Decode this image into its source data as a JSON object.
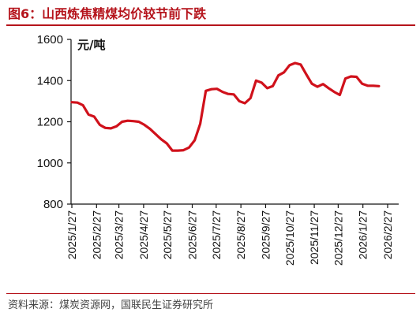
{
  "header": {
    "title": "图6：山西炼焦精煤均价较节前下跌"
  },
  "footer": {
    "source": "资料来源：煤炭资源网，国联民生证券研究所"
  },
  "chart_data": {
    "type": "line",
    "title": "图6：山西炼焦精煤均价较节前下跌",
    "ylabel": "元/吨",
    "xlabel": "",
    "ylim": [
      800,
      1600
    ],
    "yticks": [
      800,
      1000,
      1200,
      1400,
      1600
    ],
    "grid": false,
    "line_color": "#d0111b",
    "x_tick_labels": [
      "2025/1/27",
      "2025/2/27",
      "2025/3/27",
      "2025/4/27",
      "2025/5/27",
      "2025/6/27",
      "2025/7/27",
      "2025/8/27",
      "2025/9/27",
      "2025/10/27",
      "2025/11/27",
      "2025/12/27",
      "2026/1/27",
      "2026/2/27"
    ],
    "series": [
      {
        "values": [
          {
            "x": "2025/1/27",
            "y": 1295
          },
          {
            "x": "2025/2/3",
            "y": 1293
          },
          {
            "x": "2025/2/10",
            "y": 1280
          },
          {
            "x": "2025/2/17",
            "y": 1235
          },
          {
            "x": "2025/2/24",
            "y": 1225
          },
          {
            "x": "2025/3/3",
            "y": 1185
          },
          {
            "x": "2025/3/10",
            "y": 1170
          },
          {
            "x": "2025/3/17",
            "y": 1168
          },
          {
            "x": "2025/3/24",
            "y": 1178
          },
          {
            "x": "2025/3/31",
            "y": 1200
          },
          {
            "x": "2025/4/7",
            "y": 1205
          },
          {
            "x": "2025/4/14",
            "y": 1203
          },
          {
            "x": "2025/4/21",
            "y": 1200
          },
          {
            "x": "2025/4/28",
            "y": 1185
          },
          {
            "x": "2025/5/5",
            "y": 1165
          },
          {
            "x": "2025/5/12",
            "y": 1140
          },
          {
            "x": "2025/5/19",
            "y": 1115
          },
          {
            "x": "2025/5/26",
            "y": 1095
          },
          {
            "x": "2025/6/2",
            "y": 1060
          },
          {
            "x": "2025/6/9",
            "y": 1060
          },
          {
            "x": "2025/6/16",
            "y": 1062
          },
          {
            "x": "2025/6/23",
            "y": 1075
          },
          {
            "x": "2025/6/30",
            "y": 1110
          },
          {
            "x": "2025/7/7",
            "y": 1190
          },
          {
            "x": "2025/7/14",
            "y": 1350
          },
          {
            "x": "2025/7/21",
            "y": 1358
          },
          {
            "x": "2025/7/28",
            "y": 1360
          },
          {
            "x": "2025/8/4",
            "y": 1345
          },
          {
            "x": "2025/8/11",
            "y": 1335
          },
          {
            "x": "2025/8/18",
            "y": 1333
          },
          {
            "x": "2025/8/25",
            "y": 1300
          },
          {
            "x": "2025/9/1",
            "y": 1290
          },
          {
            "x": "2025/9/8",
            "y": 1315
          },
          {
            "x": "2025/9/15",
            "y": 1400
          },
          {
            "x": "2025/9/22",
            "y": 1390
          },
          {
            "x": "2025/9/29",
            "y": 1363
          },
          {
            "x": "2025/10/6",
            "y": 1373
          },
          {
            "x": "2025/10/13",
            "y": 1425
          },
          {
            "x": "2025/10/20",
            "y": 1440
          },
          {
            "x": "2025/10/27",
            "y": 1475
          },
          {
            "x": "2025/11/3",
            "y": 1485
          },
          {
            "x": "2025/11/10",
            "y": 1478
          },
          {
            "x": "2025/11/17",
            "y": 1430
          },
          {
            "x": "2025/11/24",
            "y": 1385
          },
          {
            "x": "2025/12/1",
            "y": 1370
          },
          {
            "x": "2025/12/8",
            "y": 1383
          },
          {
            "x": "2025/12/15",
            "y": 1363
          },
          {
            "x": "2025/12/22",
            "y": 1345
          },
          {
            "x": "2025/12/29",
            "y": 1330
          },
          {
            "x": "2026/1/5",
            "y": 1410
          },
          {
            "x": "2026/1/12",
            "y": 1420
          },
          {
            "x": "2026/1/19",
            "y": 1418
          },
          {
            "x": "2026/1/26",
            "y": 1385
          },
          {
            "x": "2026/2/2",
            "y": 1375
          },
          {
            "x": "2026/2/9",
            "y": 1375
          },
          {
            "x": "2026/2/16",
            "y": 1373
          }
        ]
      }
    ]
  }
}
